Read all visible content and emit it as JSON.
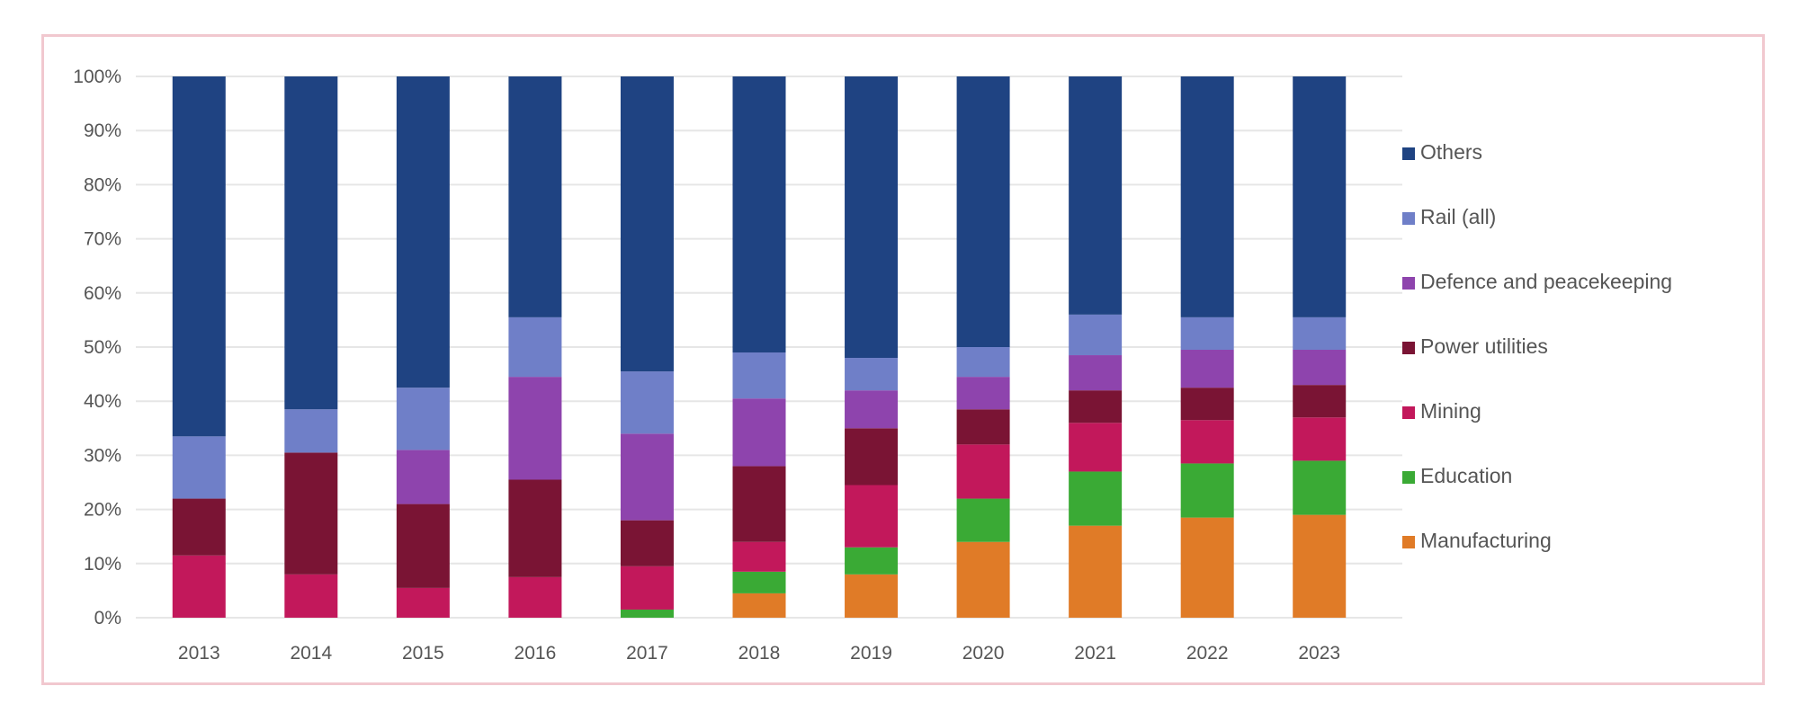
{
  "chart_data": {
    "type": "bar",
    "stacked": true,
    "normalized": true,
    "grid": true,
    "legend_placement": "right",
    "ylim": [
      0,
      100
    ],
    "y_ticks": [
      "0%",
      "10%",
      "20%",
      "30%",
      "40%",
      "50%",
      "60%",
      "70%",
      "80%",
      "90%",
      "100%"
    ],
    "categories": [
      "2013",
      "2014",
      "2015",
      "2016",
      "2017",
      "2018",
      "2019",
      "2020",
      "2021",
      "2022",
      "2023"
    ],
    "series": [
      {
        "name": "Manufacturing",
        "color": "#e07b27",
        "values": [
          0,
          0,
          0,
          0,
          0,
          4.5,
          8,
          14,
          17,
          18.5,
          19
        ]
      },
      {
        "name": "Education",
        "color": "#3aaa35",
        "values": [
          0,
          0,
          0,
          0,
          1.5,
          4,
          5,
          8,
          10,
          10,
          10
        ]
      },
      {
        "name": "Mining",
        "color": "#c2185b",
        "values": [
          11.5,
          8,
          5.5,
          7.5,
          8,
          5.5,
          11.5,
          10,
          9,
          8,
          8
        ]
      },
      {
        "name": "Power utilities",
        "color": "#7a1434",
        "values": [
          10.5,
          22.5,
          15.5,
          18,
          8.5,
          14,
          10.5,
          6.5,
          6,
          6,
          6
        ]
      },
      {
        "name": "Defence and peacekeeping",
        "color": "#8e44ad",
        "values": [
          0,
          0,
          10,
          19,
          16,
          12.5,
          7,
          6,
          6.5,
          7,
          6.5
        ]
      },
      {
        "name": "Rail (all)",
        "color": "#6f7fc8",
        "values": [
          11.5,
          8,
          11.5,
          11,
          11.5,
          8.5,
          6,
          5.5,
          7.5,
          6,
          6
        ]
      },
      {
        "name": "Others",
        "color": "#1f4382",
        "values": [
          66.5,
          61.5,
          57.5,
          44.5,
          54.5,
          51,
          52,
          50,
          44,
          44.5,
          44.5
        ]
      }
    ],
    "legend_order": [
      "Others",
      "Rail (all)",
      "Defence and peacekeeping",
      "Power utilities",
      "Mining",
      "Education",
      "Manufacturing"
    ]
  }
}
